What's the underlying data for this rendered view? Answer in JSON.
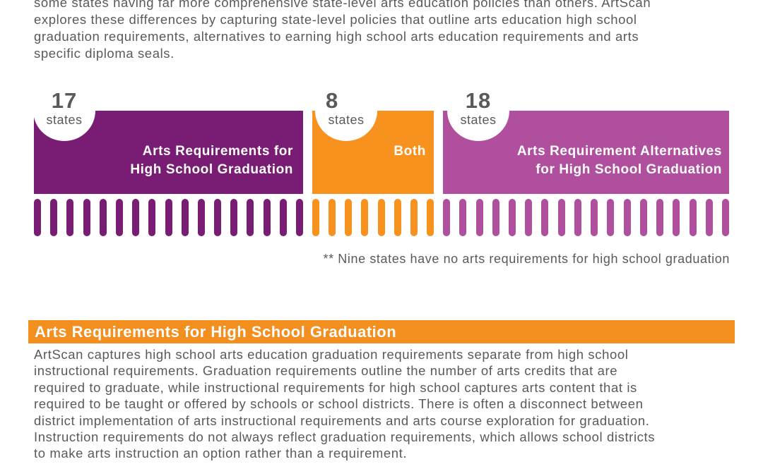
{
  "intro": {
    "lines": [
      "some states having far more comprehensive state-level arts education policies than others. ArtScan",
      "explores these differences by capturing state-level policies that outline arts education high school",
      "graduation requirements, alternatives to earning high school arts education requirements and arts",
      "specific diploma seals."
    ]
  },
  "colors": {
    "purple": "#781d73",
    "orange": "#f7921e",
    "magenta": "#b04f9e",
    "section_header": "#f28f1e"
  },
  "groups": [
    {
      "count": "17",
      "unit": "states",
      "label_line1": "Arts Requirements for",
      "label_line2": "High School Graduation",
      "bar_count": 17
    },
    {
      "count": "8",
      "unit": "states",
      "label_line1": "Both",
      "label_line2": "",
      "bar_count": 8
    },
    {
      "count": "18",
      "unit": "states",
      "label_line1": "Arts Requirement Alternatives",
      "label_line2": "for High School Graduation",
      "bar_count": 18
    }
  ],
  "footnote": "** Nine states have no arts requirements for high school graduation",
  "section": {
    "title": "Arts Requirements for High School Graduation",
    "lines": [
      "ArtScan captures high school arts education graduation requirements separate from high school",
      "instructional requirements. Graduation requirements outline the number of arts credits that are",
      "required to graduate, while instructional requirements for high school captures arts content that is",
      "required to be taught or offered by schools or school districts. There is often a disconnect between",
      "district implementation of arts instructional requirements and arts course exploration for graduation.",
      "Instruction requirements do not always reflect graduation requirements, which allows school districts",
      "to make arts instruction an option rather than a requirement."
    ]
  }
}
